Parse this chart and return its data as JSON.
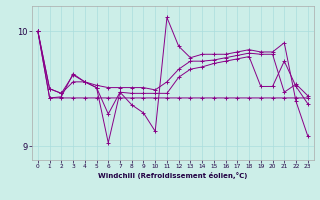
{
  "xlabel": "Windchill (Refroidissement éolien,°C)",
  "background_color": "#cceee8",
  "grid_color": "#aadddd",
  "line_color": "#880088",
  "xlim": [
    -0.5,
    23.5
  ],
  "ylim": [
    8.88,
    10.22
  ],
  "yticks": [
    9.0,
    10.0
  ],
  "xticks": [
    0,
    1,
    2,
    3,
    4,
    5,
    6,
    7,
    8,
    9,
    10,
    11,
    12,
    13,
    14,
    15,
    16,
    17,
    18,
    19,
    20,
    21,
    22,
    23
  ],
  "series": [
    [
      10.0,
      9.5,
      9.46,
      9.62,
      9.56,
      9.51,
      9.28,
      9.47,
      9.46,
      9.46,
      9.46,
      9.46,
      9.6,
      9.67,
      9.69,
      9.72,
      9.74,
      9.76,
      9.78,
      9.52,
      9.52,
      9.74,
      9.52,
      9.37
    ],
    [
      10.0,
      9.5,
      9.46,
      9.56,
      9.56,
      9.53,
      9.51,
      9.51,
      9.51,
      9.51,
      9.49,
      9.56,
      9.67,
      9.74,
      9.74,
      9.75,
      9.77,
      9.79,
      9.81,
      9.8,
      9.8,
      9.47,
      9.54,
      9.44
    ],
    [
      10.0,
      9.42,
      9.43,
      9.63,
      9.56,
      9.51,
      9.03,
      9.47,
      9.36,
      9.29,
      9.13,
      10.12,
      9.87,
      9.77,
      9.8,
      9.8,
      9.8,
      9.82,
      9.84,
      9.82,
      9.82,
      9.9,
      9.39,
      9.09
    ],
    [
      10.0,
      9.42,
      9.42,
      9.42,
      9.42,
      9.42,
      9.42,
      9.42,
      9.42,
      9.42,
      9.42,
      9.42,
      9.42,
      9.42,
      9.42,
      9.42,
      9.42,
      9.42,
      9.42,
      9.42,
      9.42,
      9.42,
      9.42,
      9.42
    ]
  ]
}
